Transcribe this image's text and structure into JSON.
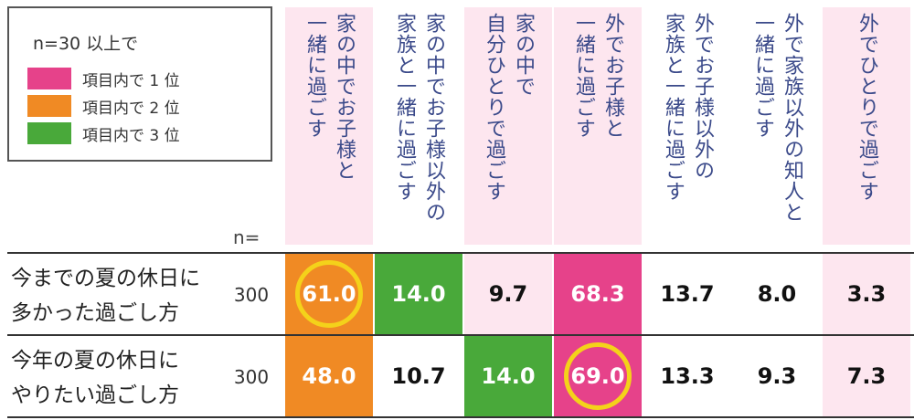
{
  "legend": {
    "note": "n=30 以上で",
    "items": [
      {
        "label": "項目内で 1 位",
        "color": "#e6428a"
      },
      {
        "label": "項目内で 2 位",
        "color": "#f08a24"
      },
      {
        "label": "項目内で 3 位",
        "color": "#49a93a"
      }
    ]
  },
  "n_header": "n=",
  "chart_data": {
    "type": "table",
    "columns": [
      "家の中でお子様と\n一緒に過ごす",
      "家の中でお子様以外の\n家族と一緒に過ごす",
      "家の中で\n自分ひとりで過ごす",
      "外でお子様と\n一緒に過ごす",
      "外でお子様以外の\n家族と一緒に過ごす",
      "外で家族以外の知人と\n一緒に過ごす",
      "外でひとりで過ごす"
    ],
    "rows": [
      {
        "label": "今までの夏の休日に\n多かった過ごし方",
        "n": "300",
        "values": [
          "61.0",
          "14.0",
          "9.7",
          "68.3",
          "13.7",
          "8.0",
          "3.3"
        ],
        "rank": [
          2,
          3,
          0,
          1,
          0,
          0,
          0
        ],
        "circled": 0
      },
      {
        "label": "今年の夏の休日に\nやりたい過ごし方",
        "n": "300",
        "values": [
          "48.0",
          "10.7",
          "14.0",
          "69.0",
          "13.3",
          "9.3",
          "7.3"
        ],
        "rank": [
          2,
          0,
          3,
          1,
          0,
          0,
          0
        ],
        "circled": 3
      }
    ],
    "column_shading": [
      "pink",
      "white",
      "pink",
      "pink",
      "white",
      "white",
      "pink"
    ],
    "rank_colors": {
      "1": "#e6428a",
      "2": "#f08a24",
      "3": "#49a93a",
      "pink": "#fde6ef",
      "highlight_ring": "#f4d21a"
    }
  }
}
